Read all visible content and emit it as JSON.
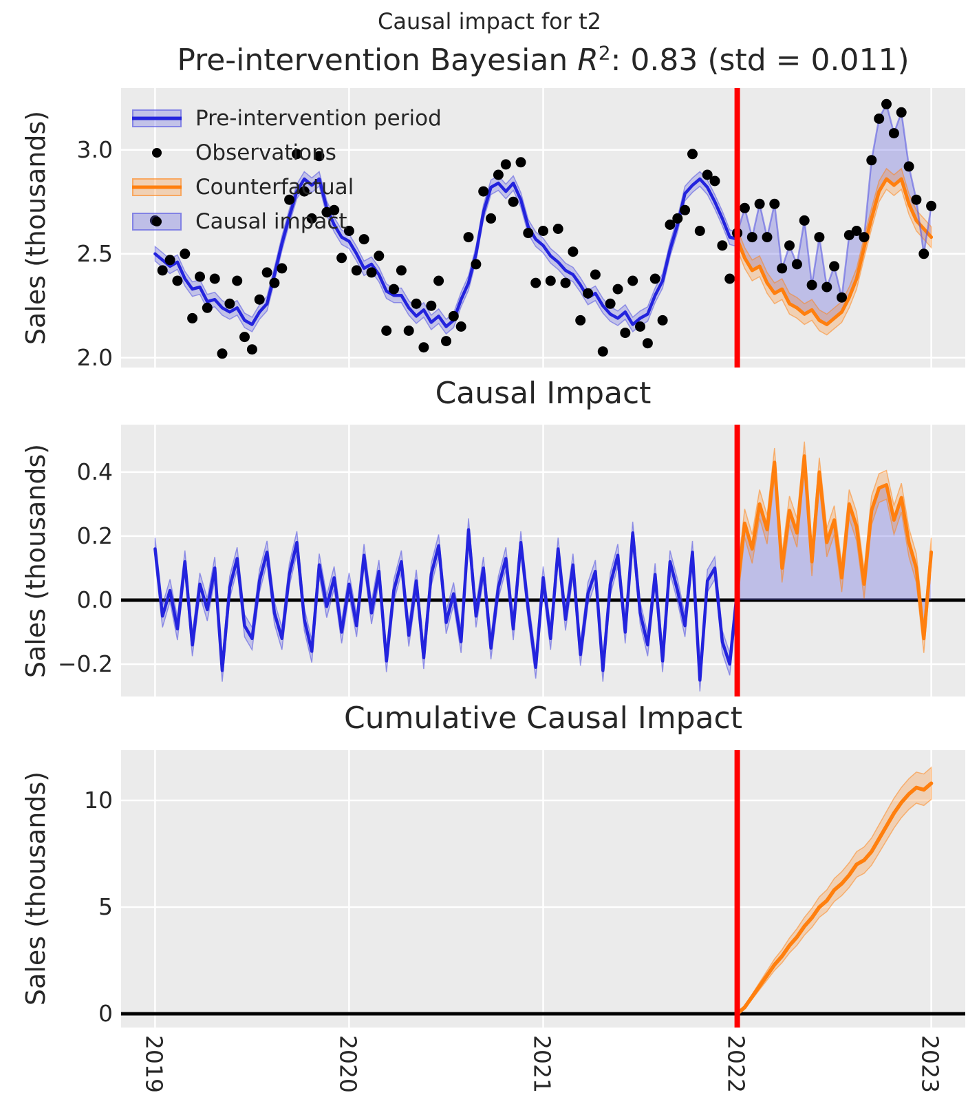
{
  "figure": {
    "suptitle": "Causal impact for t2",
    "title": {
      "prefix": "Pre-intervention Bayesian ",
      "math_r": "R",
      "math_sup": "2",
      "suffix": ": 0.83 (std = 0.011)"
    }
  },
  "colors": {
    "plot_background": "#ebebeb",
    "grid": "#ffffff",
    "text": "#262626",
    "blue_line": "#2323dd",
    "blue_band": "rgba(70,70,225,0.25)",
    "blue_band_edge": "rgba(70,70,225,0.5)",
    "impact_fill": "rgba(95,95,225,0.32)",
    "thin_obs_line": "rgba(80,80,225,0.55)",
    "orange_line": "#ff7f0e",
    "orange_band": "rgba(255,127,14,0.25)",
    "orange_band_edge": "rgba(255,127,14,0.5)",
    "observation_dot": "#000000",
    "intervention_line": "#ff0000",
    "zero_line": "#000000"
  },
  "legend": {
    "items": [
      {
        "label": "Pre-intervention period",
        "swatch": "blue-band-line"
      },
      {
        "label": "Observations",
        "swatch": "black-dot"
      },
      {
        "label": "Counterfactual",
        "swatch": "orange-band-line"
      },
      {
        "label": "Causal impact",
        "swatch": "blue-fill-dot"
      }
    ]
  },
  "chart_data": [
    {
      "type": "line",
      "title": "Pre-intervention Bayesian R^2: 0.83 (std = 0.011)",
      "xlabel": "",
      "ylabel": "Sales (thousands)",
      "ylim": [
        1.953,
        3.297
      ],
      "ytick_values": [
        2.0,
        2.5,
        3.0
      ],
      "ytick_labels": [
        "2.0",
        "2.5",
        "3.0"
      ],
      "x_axis": {
        "lim": [
          2018.825,
          2023.175
        ],
        "ticks": [
          2019,
          2020,
          2021,
          2022,
          2023
        ],
        "labels": [
          "2019",
          "2020",
          "2021",
          "2022",
          "2023"
        ]
      },
      "intervention_x": 2022,
      "grid": true,
      "legend_position": "upper left",
      "data": {
        "x_pre": {
          "start": 2019,
          "end": 2022,
          "n": 79
        },
        "x_post": {
          "start": 2022,
          "end": 2023,
          "n": 27
        },
        "mean": [
          2.5,
          2.47,
          2.44,
          2.46,
          2.38,
          2.33,
          2.34,
          2.27,
          2.28,
          2.24,
          2.22,
          2.24,
          2.18,
          2.16,
          2.22,
          2.26,
          2.4,
          2.55,
          2.68,
          2.8,
          2.86,
          2.83,
          2.86,
          2.72,
          2.64,
          2.58,
          2.56,
          2.5,
          2.43,
          2.45,
          2.4,
          2.32,
          2.3,
          2.3,
          2.24,
          2.2,
          2.23,
          2.17,
          2.2,
          2.15,
          2.18,
          2.28,
          2.36,
          2.5,
          2.7,
          2.82,
          2.84,
          2.8,
          2.84,
          2.76,
          2.63,
          2.57,
          2.54,
          2.49,
          2.46,
          2.42,
          2.4,
          2.35,
          2.29,
          2.31,
          2.25,
          2.21,
          2.19,
          2.22,
          2.16,
          2.19,
          2.21,
          2.3,
          2.37,
          2.52,
          2.64,
          2.79,
          2.83,
          2.86,
          2.82,
          2.75,
          2.67,
          2.58,
          2.57
        ],
        "observations_pre": [
          2.66,
          2.42,
          2.47,
          2.37,
          2.5,
          2.19,
          2.39,
          2.24,
          2.38,
          2.02,
          2.26,
          2.37,
          2.1,
          2.04,
          2.28,
          2.41,
          2.36,
          2.43,
          2.76,
          2.98,
          2.8,
          2.67,
          2.97,
          2.7,
          2.71,
          2.48,
          2.61,
          2.42,
          2.57,
          2.41,
          2.49,
          2.13,
          2.33,
          2.42,
          2.13,
          2.26,
          2.05,
          2.25,
          2.37,
          2.08,
          2.2,
          2.15,
          2.58,
          2.45,
          2.8,
          2.67,
          2.88,
          2.93,
          2.75,
          2.94,
          2.6,
          2.36,
          2.61,
          2.37,
          2.62,
          2.36,
          2.51,
          2.18,
          2.31,
          2.4,
          2.03,
          2.26,
          2.33,
          2.12,
          2.37,
          2.15,
          2.07,
          2.38,
          2.18,
          2.64,
          2.67,
          2.71,
          2.98,
          2.61,
          2.88,
          2.85,
          2.54,
          2.38,
          2.6
        ],
        "counterfactual": [
          2.57,
          2.48,
          2.42,
          2.44,
          2.36,
          2.31,
          2.33,
          2.26,
          2.24,
          2.21,
          2.23,
          2.18,
          2.16,
          2.19,
          2.22,
          2.29,
          2.38,
          2.53,
          2.67,
          2.8,
          2.86,
          2.83,
          2.86,
          2.74,
          2.66,
          2.62,
          2.58
        ],
        "observations_post": [
          2.6,
          2.72,
          2.58,
          2.74,
          2.58,
          2.74,
          2.43,
          2.54,
          2.45,
          2.66,
          2.35,
          2.58,
          2.34,
          2.44,
          2.29,
          2.59,
          2.61,
          2.58,
          2.95,
          3.15,
          3.22,
          3.08,
          3.18,
          2.92,
          2.76,
          2.5,
          2.73
        ]
      },
      "series": [
        {
          "name": "pre-intervention-band",
          "type": "band",
          "color": "blue_band",
          "edge": "blue_band_edge",
          "x": "x_pre",
          "y": "mean",
          "band": 0.035
        },
        {
          "name": "pre-intervention-line",
          "type": "line",
          "color": "blue_line",
          "width": 4.5,
          "x": "x_pre",
          "y": "mean"
        },
        {
          "name": "causal-impact-fill",
          "type": "fill_between",
          "color": "impact_fill",
          "x": "x_post",
          "y1": "observations_post",
          "y2": "counterfactual"
        },
        {
          "name": "counterfactual-band",
          "type": "band",
          "color": "orange_band",
          "edge": "orange_band_edge",
          "x": "x_post",
          "y": "counterfactual",
          "band": 0.05
        },
        {
          "name": "counterfactual-line",
          "type": "line",
          "color": "orange_line",
          "width": 5,
          "x": "x_post",
          "y": "counterfactual"
        },
        {
          "name": "post-observations-line",
          "type": "line",
          "color": "thin_obs_line",
          "width": 2.5,
          "x": "x_post",
          "y": "observations_post"
        },
        {
          "name": "observations-pre",
          "type": "scatter",
          "color": "observation_dot",
          "r": 7.5,
          "x": "x_pre",
          "y": "observations_pre"
        },
        {
          "name": "observations-post",
          "type": "scatter",
          "color": "observation_dot",
          "r": 7.5,
          "x": "x_post",
          "y": "observations_post"
        }
      ]
    },
    {
      "type": "line",
      "title": "Causal Impact",
      "xlabel": "",
      "ylabel": "Sales (thousands)",
      "ylim": [
        -0.301,
        0.548
      ],
      "ytick_values": [
        -0.2,
        0.0,
        0.2,
        0.4
      ],
      "ytick_labels": [
        "−0.2",
        "0.0",
        "0.2",
        "0.4"
      ],
      "x_axis": {
        "lim": [
          2018.825,
          2023.175
        ],
        "ticks": [
          2019,
          2020,
          2021,
          2022,
          2023
        ],
        "labels": [
          "2019",
          "2020",
          "2021",
          "2022",
          "2023"
        ]
      },
      "intervention_x": 2022,
      "zero_line_y": 0.0,
      "grid": true,
      "data": {
        "x_pre": {
          "start": 2019,
          "end": 2022,
          "n": 79
        },
        "x_post": {
          "start": 2022,
          "end": 2023,
          "n": 27
        },
        "impact_pre": [
          0.16,
          -0.05,
          0.03,
          -0.09,
          0.12,
          -0.14,
          0.05,
          -0.03,
          0.1,
          -0.22,
          0.04,
          0.13,
          -0.08,
          -0.12,
          0.06,
          0.15,
          -0.04,
          -0.12,
          0.08,
          0.18,
          -0.06,
          -0.16,
          0.11,
          -0.02,
          0.07,
          -0.1,
          0.05,
          -0.08,
          0.14,
          -0.04,
          0.09,
          -0.19,
          0.03,
          0.12,
          -0.11,
          0.06,
          -0.18,
          0.08,
          0.17,
          -0.07,
          0.02,
          -0.13,
          0.22,
          -0.05,
          0.1,
          -0.15,
          0.04,
          0.13,
          -0.09,
          0.18,
          -0.03,
          -0.21,
          0.07,
          -0.12,
          0.16,
          -0.06,
          0.11,
          -0.17,
          0.02,
          0.09,
          -0.22,
          0.05,
          0.14,
          -0.1,
          0.21,
          -0.04,
          -0.14,
          0.08,
          -0.19,
          0.12,
          0.03,
          -0.08,
          0.15,
          -0.25,
          0.06,
          0.1,
          -0.13,
          -0.2,
          0.03
        ],
        "impact_post": [
          0.03,
          0.24,
          0.16,
          0.3,
          0.22,
          0.43,
          0.1,
          0.28,
          0.21,
          0.45,
          0.12,
          0.4,
          0.18,
          0.25,
          0.07,
          0.3,
          0.23,
          0.05,
          0.28,
          0.35,
          0.36,
          0.25,
          0.32,
          0.18,
          0.1,
          -0.12,
          0.15
        ]
      },
      "series": [
        {
          "name": "impact-pre-band",
          "type": "band",
          "color": "blue_band",
          "edge": "blue_band_edge",
          "x": "x_pre",
          "y": "impact_pre",
          "band": 0.035
        },
        {
          "name": "impact-pre-line",
          "type": "line",
          "color": "blue_line",
          "width": 4.5,
          "x": "x_pre",
          "y": "impact_pre"
        },
        {
          "name": "impact-post-fill",
          "type": "fill_to_zero",
          "color": "impact_fill",
          "x": "x_post",
          "y": "impact_post"
        },
        {
          "name": "impact-post-band",
          "type": "band",
          "color": "orange_band",
          "edge": "orange_band_edge",
          "x": "x_post",
          "y": "impact_post",
          "band": 0.045
        },
        {
          "name": "impact-post-line",
          "type": "line",
          "color": "orange_line",
          "width": 5,
          "x": "x_post",
          "y": "impact_post"
        }
      ]
    },
    {
      "type": "line",
      "title": "Cumulative Causal Impact",
      "xlabel": "",
      "ylabel": "Sales (thousands)",
      "ylim": [
        -0.645,
        12.355
      ],
      "ytick_values": [
        0,
        5,
        10
      ],
      "ytick_labels": [
        "0",
        "5",
        "10"
      ],
      "x_axis": {
        "lim": [
          2018.825,
          2023.175
        ],
        "ticks": [
          2019,
          2020,
          2021,
          2022,
          2023
        ],
        "labels": [
          "2019",
          "2020",
          "2021",
          "2022",
          "2023"
        ]
      },
      "intervention_x": 2022,
      "zero_line_y": 0.0,
      "grid": true,
      "show_x_tick_labels": true,
      "data": {
        "x_post": {
          "start": 2022,
          "end": 2023,
          "n": 27
        },
        "cumulative": [
          0.0,
          0.3,
          0.8,
          1.3,
          1.8,
          2.3,
          2.7,
          3.2,
          3.6,
          4.1,
          4.5,
          5.0,
          5.3,
          5.8,
          6.1,
          6.5,
          7.0,
          7.2,
          7.6,
          8.2,
          8.8,
          9.4,
          9.9,
          10.3,
          10.6,
          10.5,
          10.8
        ],
        "cumulative_band": [
          0.02,
          0.06,
          0.12,
          0.17,
          0.22,
          0.27,
          0.31,
          0.35,
          0.39,
          0.42,
          0.45,
          0.48,
          0.51,
          0.54,
          0.56,
          0.58,
          0.6,
          0.62,
          0.64,
          0.66,
          0.68,
          0.7,
          0.71,
          0.72,
          0.73,
          0.74,
          0.75
        ]
      },
      "series": [
        {
          "name": "cumulative-band",
          "type": "varband",
          "color": "orange_band",
          "edge": "orange_band_edge",
          "x": "x_post",
          "y": "cumulative",
          "band": "cumulative_band"
        },
        {
          "name": "cumulative-line",
          "type": "line",
          "color": "orange_line",
          "width": 5.5,
          "x": "x_post",
          "y": "cumulative"
        }
      ]
    }
  ]
}
